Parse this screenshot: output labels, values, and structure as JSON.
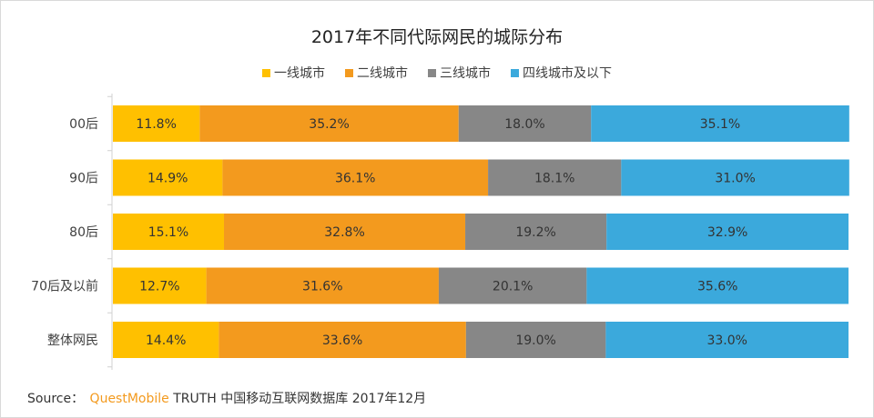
{
  "chart_data": {
    "type": "bar",
    "orientation": "horizontal",
    "stacked": true,
    "title": "2017年不同代际网民的城际分布",
    "categories": [
      "00后",
      "90后",
      "80后",
      "70后及以前",
      "整体网民"
    ],
    "series": [
      {
        "name": "一线城市",
        "color": "#ffc000",
        "values": [
          11.8,
          14.9,
          15.1,
          12.7,
          14.4
        ],
        "labels": [
          "11.8%",
          "14.9%",
          "15.1%",
          "12.7%",
          "14.4%"
        ]
      },
      {
        "name": "二线城市",
        "color": "#f39a1e",
        "values": [
          35.2,
          36.1,
          32.8,
          31.6,
          33.6
        ],
        "labels": [
          "35.2%",
          "36.1%",
          "32.8%",
          "31.6%",
          "33.6%"
        ]
      },
      {
        "name": "三线城市",
        "color": "#878787",
        "values": [
          18.0,
          18.1,
          19.2,
          20.1,
          19.0
        ],
        "labels": [
          "18.0%",
          "18.1%",
          "19.2%",
          "20.1%",
          "19.0%"
        ]
      },
      {
        "name": "四线城市及以下",
        "color": "#3ba9dc",
        "values": [
          35.1,
          31.0,
          32.9,
          35.6,
          33.0
        ],
        "labels": [
          "35.1%",
          "31.0%",
          "32.9%",
          "35.6%",
          "33.0%"
        ]
      }
    ],
    "xlim": [
      0,
      100
    ],
    "legend_position": "top-center",
    "grid": false
  },
  "source": {
    "label": "Source：",
    "brand": "QuestMobile",
    "text": "TRUTH 中国移动互联网数据库 2017年12月"
  }
}
